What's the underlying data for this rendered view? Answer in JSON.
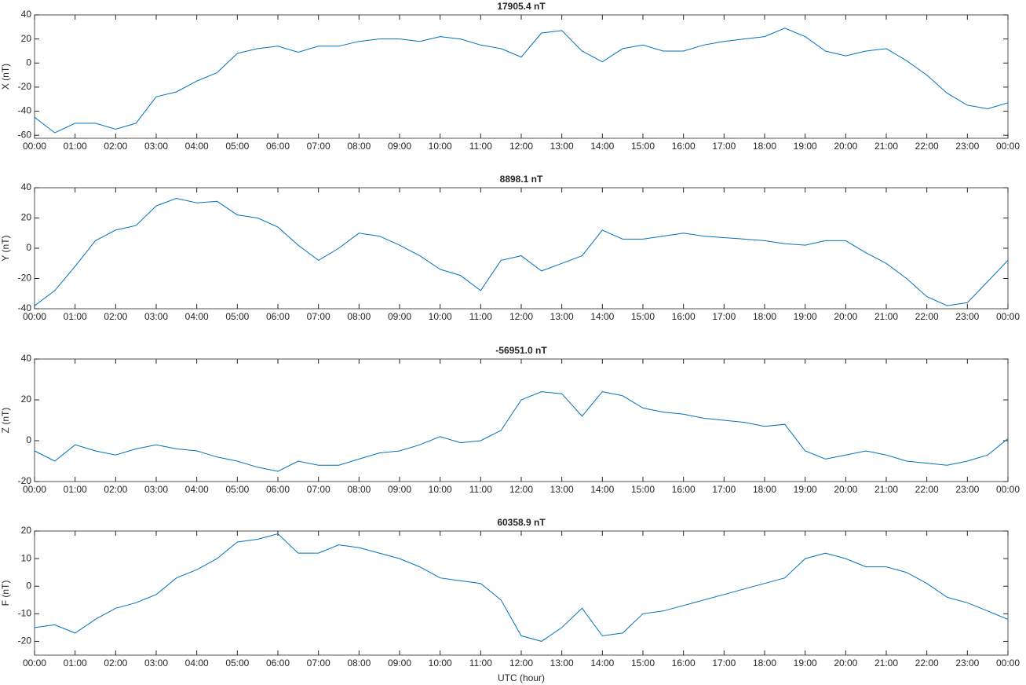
{
  "chart_data": [
    {
      "type": "line",
      "title": "17905.4 nT",
      "ylabel": "X (nT)",
      "ylim": [
        -62.5,
        40
      ],
      "yticks": [
        -60,
        -40,
        -20,
        0,
        20,
        40
      ],
      "xlim": [
        0,
        24
      ],
      "xticks": [
        {
          "value": 0,
          "label": "00:00"
        },
        {
          "value": 1,
          "label": "01:00"
        },
        {
          "value": 2,
          "label": "02:00"
        },
        {
          "value": 3,
          "label": "03:00"
        },
        {
          "value": 4,
          "label": "04:00"
        },
        {
          "value": 5,
          "label": "05:00"
        },
        {
          "value": 6,
          "label": "06:00"
        },
        {
          "value": 7,
          "label": "07:00"
        },
        {
          "value": 8,
          "label": "08:00"
        },
        {
          "value": 9,
          "label": "09:00"
        },
        {
          "value": 10,
          "label": "10:00"
        },
        {
          "value": 11,
          "label": "11:00"
        },
        {
          "value": 12,
          "label": "12:00"
        },
        {
          "value": 13,
          "label": "13:00"
        },
        {
          "value": 14,
          "label": "14:00"
        },
        {
          "value": 15,
          "label": "15:00"
        },
        {
          "value": 16,
          "label": "16:00"
        },
        {
          "value": 17,
          "label": "17:00"
        },
        {
          "value": 18,
          "label": "18:00"
        },
        {
          "value": 19,
          "label": "19:00"
        },
        {
          "value": 20,
          "label": "20:00"
        },
        {
          "value": 21,
          "label": "21:00"
        },
        {
          "value": 22,
          "label": "22:00"
        },
        {
          "value": 23,
          "label": "23:00"
        },
        {
          "value": 24,
          "label": "00:00"
        }
      ],
      "x": [
        0,
        0.5,
        1,
        1.5,
        2,
        2.5,
        3,
        3.5,
        4,
        4.5,
        5,
        5.5,
        6,
        6.5,
        7,
        7.5,
        8,
        8.5,
        9,
        9.5,
        10,
        10.5,
        11,
        11.5,
        12,
        12.5,
        13,
        13.5,
        14,
        14.5,
        15,
        15.5,
        16,
        16.5,
        17,
        17.5,
        18,
        18.5,
        19,
        19.5,
        20,
        20.5,
        21,
        21.5,
        22,
        22.5,
        23,
        23.5,
        24
      ],
      "series": [
        {
          "color": "#0072bd",
          "values": [
            -45,
            -58,
            -50,
            -50,
            -55,
            -50,
            -28,
            -24,
            -15,
            -8,
            8,
            12,
            14,
            9,
            14,
            14,
            18,
            20,
            20,
            18,
            22,
            20,
            15,
            12,
            5,
            25,
            27,
            10,
            1,
            12,
            15,
            10,
            10,
            15,
            18,
            20,
            22,
            29,
            22,
            10,
            6,
            10,
            12,
            2,
            -10,
            -25,
            -35,
            -38,
            -33
          ]
        }
      ]
    },
    {
      "type": "line",
      "title": "8898.1 nT",
      "ylabel": "Y (nT)",
      "ylim": [
        -40,
        40
      ],
      "yticks": [
        -40,
        -20,
        0,
        20,
        40
      ],
      "xlim": [
        0,
        24
      ],
      "xticks": [
        {
          "value": 0,
          "label": "00:00"
        },
        {
          "value": 1,
          "label": "01:00"
        },
        {
          "value": 2,
          "label": "02:00"
        },
        {
          "value": 3,
          "label": "03:00"
        },
        {
          "value": 4,
          "label": "04:00"
        },
        {
          "value": 5,
          "label": "05:00"
        },
        {
          "value": 6,
          "label": "06:00"
        },
        {
          "value": 7,
          "label": "07:00"
        },
        {
          "value": 8,
          "label": "08:00"
        },
        {
          "value": 9,
          "label": "09:00"
        },
        {
          "value": 10,
          "label": "10:00"
        },
        {
          "value": 11,
          "label": "11:00"
        },
        {
          "value": 12,
          "label": "12:00"
        },
        {
          "value": 13,
          "label": "13:00"
        },
        {
          "value": 14,
          "label": "14:00"
        },
        {
          "value": 15,
          "label": "15:00"
        },
        {
          "value": 16,
          "label": "16:00"
        },
        {
          "value": 17,
          "label": "17:00"
        },
        {
          "value": 18,
          "label": "18:00"
        },
        {
          "value": 19,
          "label": "19:00"
        },
        {
          "value": 20,
          "label": "20:00"
        },
        {
          "value": 21,
          "label": "21:00"
        },
        {
          "value": 22,
          "label": "22:00"
        },
        {
          "value": 23,
          "label": "23:00"
        },
        {
          "value": 24,
          "label": "00:00"
        }
      ],
      "x": [
        0,
        0.5,
        1,
        1.5,
        2,
        2.5,
        3,
        3.5,
        4,
        4.5,
        5,
        5.5,
        6,
        6.5,
        7,
        7.5,
        8,
        8.5,
        9,
        9.5,
        10,
        10.5,
        11,
        11.5,
        12,
        12.5,
        13,
        13.5,
        14,
        14.5,
        15,
        15.5,
        16,
        16.5,
        17,
        17.5,
        18,
        18.5,
        19,
        19.5,
        20,
        20.5,
        21,
        21.5,
        22,
        22.5,
        23,
        23.5,
        24
      ],
      "series": [
        {
          "color": "#0072bd",
          "values": [
            -38,
            -28,
            -12,
            5,
            12,
            15,
            28,
            33,
            30,
            31,
            22,
            20,
            14,
            2,
            -8,
            0,
            10,
            8,
            2,
            -5,
            -14,
            -18,
            -28,
            -8,
            -5,
            -15,
            -10,
            -5,
            12,
            6,
            6,
            8,
            10,
            8,
            7,
            6,
            5,
            3,
            2,
            5,
            5,
            -3,
            -10,
            -20,
            -32,
            -38,
            -36,
            -22,
            -8
          ]
        }
      ]
    },
    {
      "type": "line",
      "title": "-56951.0 nT",
      "ylabel": "Z (nT)",
      "ylim": [
        -20,
        40
      ],
      "yticks": [
        -20,
        0,
        20,
        40
      ],
      "xlim": [
        0,
        24
      ],
      "xticks": [
        {
          "value": 0,
          "label": "00:00"
        },
        {
          "value": 1,
          "label": "01:00"
        },
        {
          "value": 2,
          "label": "02:00"
        },
        {
          "value": 3,
          "label": "03:00"
        },
        {
          "value": 4,
          "label": "04:00"
        },
        {
          "value": 5,
          "label": "05:00"
        },
        {
          "value": 6,
          "label": "06:00"
        },
        {
          "value": 7,
          "label": "07:00"
        },
        {
          "value": 8,
          "label": "08:00"
        },
        {
          "value": 9,
          "label": "09:00"
        },
        {
          "value": 10,
          "label": "10:00"
        },
        {
          "value": 11,
          "label": "11:00"
        },
        {
          "value": 12,
          "label": "12:00"
        },
        {
          "value": 13,
          "label": "13:00"
        },
        {
          "value": 14,
          "label": "14:00"
        },
        {
          "value": 15,
          "label": "15:00"
        },
        {
          "value": 16,
          "label": "16:00"
        },
        {
          "value": 17,
          "label": "17:00"
        },
        {
          "value": 18,
          "label": "18:00"
        },
        {
          "value": 19,
          "label": "19:00"
        },
        {
          "value": 20,
          "label": "20:00"
        },
        {
          "value": 21,
          "label": "21:00"
        },
        {
          "value": 22,
          "label": "22:00"
        },
        {
          "value": 23,
          "label": "23:00"
        },
        {
          "value": 24,
          "label": "00:00"
        }
      ],
      "x": [
        0,
        0.5,
        1,
        1.5,
        2,
        2.5,
        3,
        3.5,
        4,
        4.5,
        5,
        5.5,
        6,
        6.5,
        7,
        7.5,
        8,
        8.5,
        9,
        9.5,
        10,
        10.5,
        11,
        11.5,
        12,
        12.5,
        13,
        13.5,
        14,
        14.5,
        15,
        15.5,
        16,
        16.5,
        17,
        17.5,
        18,
        18.5,
        19,
        19.5,
        20,
        20.5,
        21,
        21.5,
        22,
        22.5,
        23,
        23.5,
        24
      ],
      "series": [
        {
          "color": "#0072bd",
          "values": [
            -5,
            -10,
            -2,
            -5,
            -7,
            -4,
            -2,
            -4,
            -5,
            -8,
            -10,
            -13,
            -15,
            -10,
            -12,
            -12,
            -9,
            -6,
            -5,
            -2,
            2,
            -1,
            0,
            5,
            20,
            24,
            23,
            12,
            24,
            22,
            16,
            14,
            13,
            11,
            10,
            9,
            7,
            8,
            -5,
            -9,
            -7,
            -5,
            -7,
            -10,
            -11,
            -12,
            -10,
            -7,
            1
          ]
        }
      ]
    },
    {
      "type": "line",
      "title": "60358.9 nT",
      "ylabel": "F (nT)",
      "xlabel": "UTC (hour)",
      "ylim": [
        -25,
        20
      ],
      "yticks": [
        -20,
        -10,
        0,
        10,
        20
      ],
      "xlim": [
        0,
        24
      ],
      "xticks": [
        {
          "value": 0,
          "label": "00:00"
        },
        {
          "value": 1,
          "label": "01:00"
        },
        {
          "value": 2,
          "label": "02:00"
        },
        {
          "value": 3,
          "label": "03:00"
        },
        {
          "value": 4,
          "label": "04:00"
        },
        {
          "value": 5,
          "label": "05:00"
        },
        {
          "value": 6,
          "label": "06:00"
        },
        {
          "value": 7,
          "label": "07:00"
        },
        {
          "value": 8,
          "label": "08:00"
        },
        {
          "value": 9,
          "label": "09:00"
        },
        {
          "value": 10,
          "label": "10:00"
        },
        {
          "value": 11,
          "label": "11:00"
        },
        {
          "value": 12,
          "label": "12:00"
        },
        {
          "value": 13,
          "label": "13:00"
        },
        {
          "value": 14,
          "label": "14:00"
        },
        {
          "value": 15,
          "label": "15:00"
        },
        {
          "value": 16,
          "label": "16:00"
        },
        {
          "value": 17,
          "label": "17:00"
        },
        {
          "value": 18,
          "label": "18:00"
        },
        {
          "value": 19,
          "label": "19:00"
        },
        {
          "value": 20,
          "label": "20:00"
        },
        {
          "value": 21,
          "label": "21:00"
        },
        {
          "value": 22,
          "label": "22:00"
        },
        {
          "value": 23,
          "label": "23:00"
        },
        {
          "value": 24,
          "label": "00:00"
        }
      ],
      "x": [
        0,
        0.5,
        1,
        1.5,
        2,
        2.5,
        3,
        3.5,
        4,
        4.5,
        5,
        5.5,
        6,
        6.5,
        7,
        7.5,
        8,
        8.5,
        9,
        9.5,
        10,
        10.5,
        11,
        11.5,
        12,
        12.5,
        13,
        13.5,
        14,
        14.5,
        15,
        15.5,
        16,
        16.5,
        17,
        17.5,
        18,
        18.5,
        19,
        19.5,
        20,
        20.5,
        21,
        21.5,
        22,
        22.5,
        23,
        23.5,
        24
      ],
      "series": [
        {
          "color": "#0072bd",
          "values": [
            -15,
            -14,
            -17,
            -12,
            -8,
            -6,
            -3,
            3,
            6,
            10,
            16,
            17,
            19,
            12,
            12,
            15,
            14,
            12,
            10,
            7,
            3,
            2,
            1,
            -5,
            -18,
            -20,
            -15,
            -8,
            -18,
            -17,
            -10,
            -9,
            -7,
            -5,
            -3,
            -1,
            1,
            3,
            10,
            12,
            10,
            7,
            7,
            5,
            1,
            -4,
            -6,
            -9,
            -12
          ]
        }
      ]
    }
  ]
}
